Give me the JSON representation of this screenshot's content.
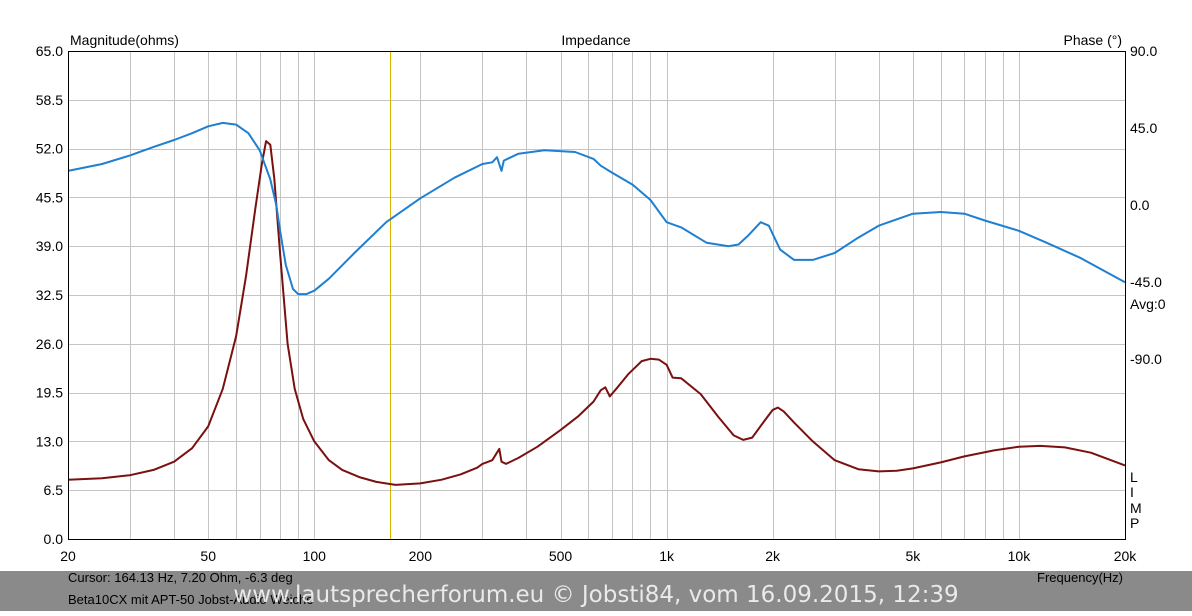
{
  "chart_data": {
    "type": "line",
    "title": "Impedance",
    "left_axis_label": "Magnitude(ohms)",
    "right_axis_label": "Phase (°)",
    "x_axis_label": "Frequency(Hz)",
    "x_scale": "log",
    "xlim": [
      20,
      20000
    ],
    "ylim": [
      0,
      65
    ],
    "phase_lim": [
      -195,
      90
    ],
    "x_ticks": [
      {
        "value": 20,
        "label": "20"
      },
      {
        "value": 50,
        "label": "50"
      },
      {
        "value": 100,
        "label": "100"
      },
      {
        "value": 200,
        "label": "200"
      },
      {
        "value": 500,
        "label": "500"
      },
      {
        "value": 1000,
        "label": "1k"
      },
      {
        "value": 2000,
        "label": "2k"
      },
      {
        "value": 5000,
        "label": "5k"
      },
      {
        "value": 10000,
        "label": "10k"
      },
      {
        "value": 20000,
        "label": "20k"
      }
    ],
    "y_ticks": [
      {
        "value": 65,
        "label": "65.0"
      },
      {
        "value": 58.5,
        "label": "58.5"
      },
      {
        "value": 52,
        "label": "52.0"
      },
      {
        "value": 45.5,
        "label": "45.5"
      },
      {
        "value": 39,
        "label": "39.0"
      },
      {
        "value": 32.5,
        "label": "32.5"
      },
      {
        "value": 26,
        "label": "26.0"
      },
      {
        "value": 19.5,
        "label": "19.5"
      },
      {
        "value": 13,
        "label": "13.0"
      },
      {
        "value": 6.5,
        "label": "6.5"
      },
      {
        "value": 0,
        "label": "0.0"
      }
    ],
    "phase_ticks": [
      {
        "value": 90,
        "label": "90.0"
      },
      {
        "value": 45,
        "label": "45.0"
      },
      {
        "value": 0,
        "label": "0.0"
      },
      {
        "value": -45,
        "label": "-45.0"
      },
      {
        "value": -90,
        "label": "-90.0"
      }
    ],
    "avg_label": "Avg:0",
    "side_letters": [
      "L",
      "I",
      "M",
      "P"
    ],
    "grid": true,
    "cursor_marker_freq": 164.13,
    "series": [
      {
        "key": "magnitude",
        "axis": "left",
        "color": "#7a1010",
        "points": [
          [
            20,
            7.9
          ],
          [
            25,
            8.1
          ],
          [
            30,
            8.5
          ],
          [
            35,
            9.2
          ],
          [
            40,
            10.3
          ],
          [
            45,
            12.1
          ],
          [
            50,
            15
          ],
          [
            55,
            20
          ],
          [
            60,
            27
          ],
          [
            64,
            35
          ],
          [
            68,
            44
          ],
          [
            71,
            50
          ],
          [
            73,
            53
          ],
          [
            75,
            52.5
          ],
          [
            77,
            48
          ],
          [
            80,
            38
          ],
          [
            84,
            26
          ],
          [
            88,
            20
          ],
          [
            93,
            16
          ],
          [
            100,
            13
          ],
          [
            110,
            10.5
          ],
          [
            120,
            9.2
          ],
          [
            135,
            8.2
          ],
          [
            150,
            7.6
          ],
          [
            170,
            7.2
          ],
          [
            200,
            7.4
          ],
          [
            230,
            7.9
          ],
          [
            260,
            8.6
          ],
          [
            290,
            9.5
          ],
          [
            300,
            10
          ],
          [
            320,
            10.5
          ],
          [
            335,
            12
          ],
          [
            340,
            10.3
          ],
          [
            350,
            10
          ],
          [
            380,
            10.8
          ],
          [
            430,
            12.3
          ],
          [
            500,
            14.5
          ],
          [
            560,
            16.3
          ],
          [
            620,
            18.3
          ],
          [
            650,
            19.8
          ],
          [
            670,
            20.2
          ],
          [
            690,
            19
          ],
          [
            720,
            20
          ],
          [
            780,
            22
          ],
          [
            850,
            23.7
          ],
          [
            900,
            24
          ],
          [
            950,
            23.9
          ],
          [
            1000,
            23.2
          ],
          [
            1040,
            21.5
          ],
          [
            1100,
            21.4
          ],
          [
            1250,
            19.3
          ],
          [
            1400,
            16.3
          ],
          [
            1550,
            13.8
          ],
          [
            1650,
            13.2
          ],
          [
            1750,
            13.5
          ],
          [
            1900,
            15.8
          ],
          [
            2000,
            17.2
          ],
          [
            2070,
            17.5
          ],
          [
            2150,
            17
          ],
          [
            2300,
            15.5
          ],
          [
            2600,
            13
          ],
          [
            3000,
            10.5
          ],
          [
            3500,
            9.3
          ],
          [
            4000,
            9
          ],
          [
            4500,
            9.1
          ],
          [
            5000,
            9.4
          ],
          [
            6000,
            10.2
          ],
          [
            7000,
            11
          ],
          [
            8500,
            11.8
          ],
          [
            10000,
            12.3
          ],
          [
            11500,
            12.4
          ],
          [
            13500,
            12.2
          ],
          [
            16000,
            11.5
          ],
          [
            20000,
            9.8
          ]
        ]
      },
      {
        "key": "phase",
        "axis": "right",
        "color": "#1f7fd0",
        "points": [
          [
            20,
            20
          ],
          [
            25,
            24
          ],
          [
            30,
            29
          ],
          [
            35,
            34
          ],
          [
            40,
            38
          ],
          [
            45,
            42
          ],
          [
            50,
            46
          ],
          [
            55,
            48
          ],
          [
            60,
            47
          ],
          [
            65,
            42
          ],
          [
            70,
            32
          ],
          [
            75,
            15
          ],
          [
            78,
            0
          ],
          [
            80,
            -15
          ],
          [
            83,
            -35
          ],
          [
            87,
            -49
          ],
          [
            90,
            -52
          ],
          [
            95,
            -52
          ],
          [
            100,
            -50
          ],
          [
            110,
            -43
          ],
          [
            130,
            -28
          ],
          [
            160,
            -10
          ],
          [
            200,
            4
          ],
          [
            250,
            16
          ],
          [
            300,
            24
          ],
          [
            320,
            25
          ],
          [
            330,
            28
          ],
          [
            340,
            20
          ],
          [
            345,
            26
          ],
          [
            380,
            30
          ],
          [
            450,
            32
          ],
          [
            550,
            31
          ],
          [
            620,
            27
          ],
          [
            650,
            23
          ],
          [
            700,
            19
          ],
          [
            800,
            12
          ],
          [
            900,
            3
          ],
          [
            1000,
            -10
          ],
          [
            1100,
            -13
          ],
          [
            1300,
            -22
          ],
          [
            1500,
            -24
          ],
          [
            1600,
            -23
          ],
          [
            1700,
            -18
          ],
          [
            1850,
            -10
          ],
          [
            1950,
            -12
          ],
          [
            2100,
            -26
          ],
          [
            2300,
            -32
          ],
          [
            2600,
            -32
          ],
          [
            3000,
            -28
          ],
          [
            3500,
            -19
          ],
          [
            4000,
            -12
          ],
          [
            5000,
            -5
          ],
          [
            6000,
            -4
          ],
          [
            7000,
            -5
          ],
          [
            8000,
            -9
          ],
          [
            10000,
            -15
          ],
          [
            12000,
            -22
          ],
          [
            15000,
            -31
          ],
          [
            20000,
            -45
          ]
        ]
      }
    ]
  },
  "footer": {
    "cursor_text": "Cursor: 164.13 Hz, 7.20 Ohm, -6.3 deg",
    "curve_name": "Beta10CX mit APT-50  Jobst-Audio Weiche",
    "watermark": "www.lautsprecherforum.eu © Jobsti84, vom 16.09.2015, 12:39"
  }
}
